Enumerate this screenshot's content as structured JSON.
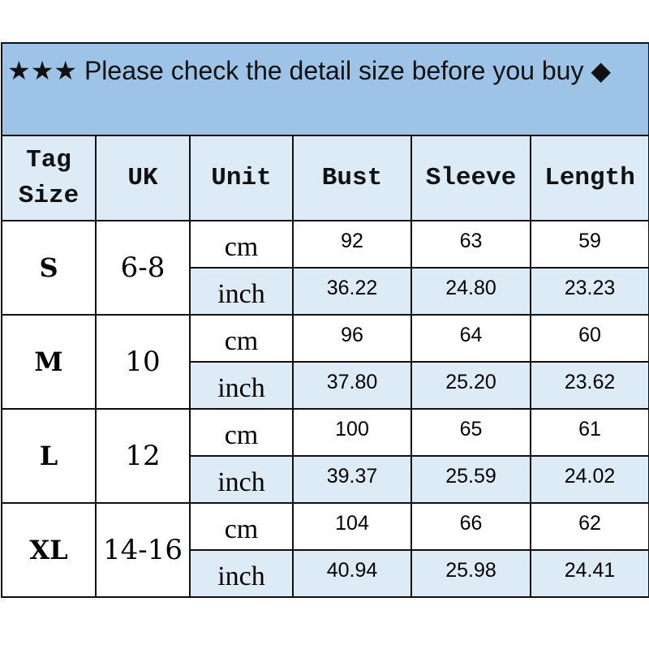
{
  "title": "★★★ Please check the detail size before you buy ◆",
  "headers": {
    "tag_size": "Tag Size",
    "uk": "UK",
    "unit": "Unit",
    "bust": "Bust",
    "sleeve": "Sleeve",
    "length": "Length"
  },
  "colors": {
    "title_bg": "#9DC3E6",
    "header_bg": "#DDEBF7",
    "inch_row_bg": "#DDEBF7"
  },
  "rows": [
    {
      "size": "S",
      "uk": "6-8",
      "cm": {
        "unit": "cm",
        "bust": "92",
        "sleeve": "63",
        "length": "59"
      },
      "inch": {
        "unit": "inch",
        "bust": "36.22",
        "sleeve": "24.80",
        "length": "23.23"
      }
    },
    {
      "size": "M",
      "uk": "10",
      "cm": {
        "unit": "cm",
        "bust": "96",
        "sleeve": "64",
        "length": "60"
      },
      "inch": {
        "unit": "inch",
        "bust": "37.80",
        "sleeve": "25.20",
        "length": "23.62"
      }
    },
    {
      "size": "L",
      "uk": "12",
      "cm": {
        "unit": "cm",
        "bust": "100",
        "sleeve": "65",
        "length": "61"
      },
      "inch": {
        "unit": "inch",
        "bust": "39.37",
        "sleeve": "25.59",
        "length": "24.02"
      }
    },
    {
      "size": "XL",
      "uk": "14-16",
      "cm": {
        "unit": "cm",
        "bust": "104",
        "sleeve": "66",
        "length": "62"
      },
      "inch": {
        "unit": "inch",
        "bust": "40.94",
        "sleeve": "25.98",
        "length": "24.41"
      }
    }
  ]
}
